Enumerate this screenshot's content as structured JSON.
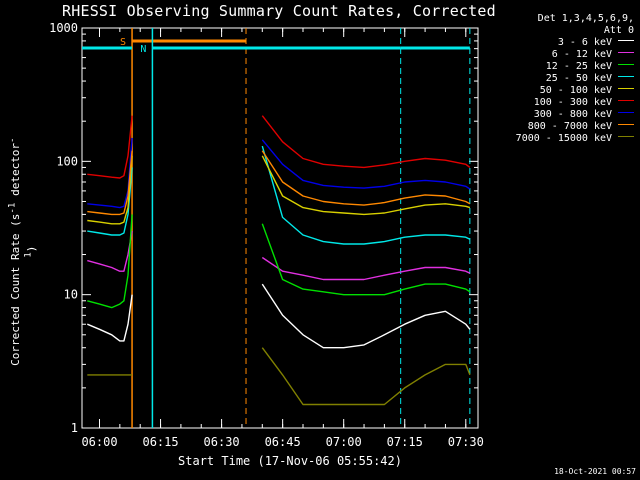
{
  "header": {
    "title": "RHESSI Observing Summary Count Rates, Corrected",
    "stamp": "18-Oct-2021 00:57"
  },
  "legend": {
    "detectors": "Det 1,3,4,5,6,9,",
    "attenuator": "Att 0",
    "entries": [
      {
        "label": "3 - 6 keV",
        "color": "#000000"
      },
      {
        "label": "6 - 12 keV",
        "color": "#e030e0"
      },
      {
        "label": "12 - 25 keV",
        "color": "#00e000"
      },
      {
        "label": "25 - 50 keV",
        "color": "#00e8e8"
      },
      {
        "label": "50 - 100 keV",
        "color": "#d8d000"
      },
      {
        "label": "100 - 300 keV",
        "color": "#e00000"
      },
      {
        "label": "300 - 800 keV",
        "color": "#0000e8"
      },
      {
        "label": "800 - 7000 keV",
        "color": "#ff8800"
      },
      {
        "label": "7000 - 15000 keV",
        "color": "#808000"
      }
    ]
  },
  "chart_data": {
    "type": "line",
    "title": "RHESSI Observing Summary Count Rates, Corrected",
    "xlabel": "Start Time (17-Nov-06 05:55:42)",
    "ylabel": "Corrected Count Rate (s⁻¹ detector⁻¹)",
    "yscale": "log",
    "ylim": [
      1,
      1000
    ],
    "xlim": [
      "05:55:42",
      "07:33:00"
    ],
    "x_ticks": [
      "06:00",
      "06:15",
      "06:30",
      "06:45",
      "07:00",
      "07:15",
      "07:30"
    ],
    "y_ticks": [
      "1",
      "10",
      "100",
      "1000"
    ],
    "x": [
      "05:57",
      "06:00",
      "06:03",
      "06:05",
      "06:06",
      "06:07",
      "06:08",
      "06:37",
      "06:40",
      "06:45",
      "06:50",
      "06:55",
      "07:00",
      "07:05",
      "07:10",
      "07:15",
      "07:20",
      "07:25",
      "07:30",
      "07:31"
    ],
    "series": [
      {
        "name": "3 - 6 keV",
        "color": "#000000",
        "values": [
          6,
          5.5,
          5,
          4.5,
          4.5,
          6,
          10,
          null,
          12,
          7,
          5,
          4,
          4,
          4.2,
          5,
          6,
          7,
          7.5,
          6,
          5.5
        ]
      },
      {
        "name": "6 - 12 keV",
        "color": "#e030e0",
        "values": [
          18,
          17,
          16,
          15,
          15,
          20,
          30,
          null,
          19,
          15,
          14,
          13,
          13,
          13,
          14,
          15,
          16,
          16,
          15,
          14.5
        ]
      },
      {
        "name": "12 - 25 keV",
        "color": "#00e000",
        "values": [
          9,
          8.5,
          8,
          8.5,
          9,
          14,
          40,
          null,
          34,
          13,
          11,
          10.5,
          10,
          10,
          10,
          11,
          12,
          12,
          11,
          10.5
        ]
      },
      {
        "name": "25 - 50 keV",
        "color": "#00e8e8",
        "values": [
          30,
          29,
          28,
          28,
          29,
          40,
          90,
          null,
          130,
          38,
          28,
          25,
          24,
          24,
          25,
          27,
          28,
          28,
          27,
          26
        ]
      },
      {
        "name": "50 - 100 keV",
        "color": "#d8d000",
        "values": [
          36,
          35,
          34,
          34,
          35,
          45,
          110,
          null,
          110,
          55,
          45,
          42,
          41,
          40,
          41,
          44,
          47,
          48,
          46,
          45
        ]
      },
      {
        "name": "100 - 300 keV",
        "color": "#e00000",
        "values": [
          80,
          78,
          76,
          75,
          78,
          110,
          220,
          null,
          220,
          140,
          105,
          95,
          92,
          90,
          94,
          100,
          105,
          102,
          95,
          90
        ]
      },
      {
        "name": "300 - 800 keV",
        "color": "#0000e8",
        "values": [
          48,
          47,
          46,
          45,
          46,
          60,
          150,
          null,
          145,
          95,
          72,
          66,
          64,
          63,
          65,
          70,
          72,
          70,
          65,
          62
        ]
      },
      {
        "name": "800 - 7000 keV",
        "color": "#ff8800",
        "values": [
          42,
          41,
          40,
          40,
          41,
          55,
          120,
          null,
          120,
          70,
          55,
          50,
          48,
          47,
          49,
          53,
          56,
          55,
          50,
          48
        ]
      },
      {
        "name": "7000 - 15000 keV",
        "color": "#808000",
        "values": [
          2.5,
          2.5,
          2.5,
          2.5,
          2.5,
          2.5,
          2.5,
          null,
          4,
          2.5,
          1.5,
          1.5,
          1.5,
          1.5,
          1.5,
          2,
          2.5,
          3,
          3,
          2.5
        ]
      }
    ],
    "annotations": [
      {
        "label": "S",
        "color": "#ff8800",
        "start": "06:08",
        "end": "06:36"
      },
      {
        "label": "N",
        "color": "#00e8e8",
        "start": "06:13",
        "end": "07:14"
      }
    ],
    "grid": false
  }
}
